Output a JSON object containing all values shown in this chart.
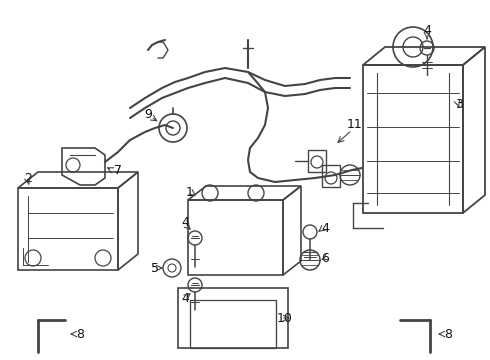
{
  "bg_color": "#ffffff",
  "line_color": "#444444",
  "label_color": "#111111",
  "fig_width": 4.9,
  "fig_height": 3.6,
  "dpi": 100,
  "xlim": [
    0,
    490
  ],
  "ylim": [
    0,
    360
  ]
}
